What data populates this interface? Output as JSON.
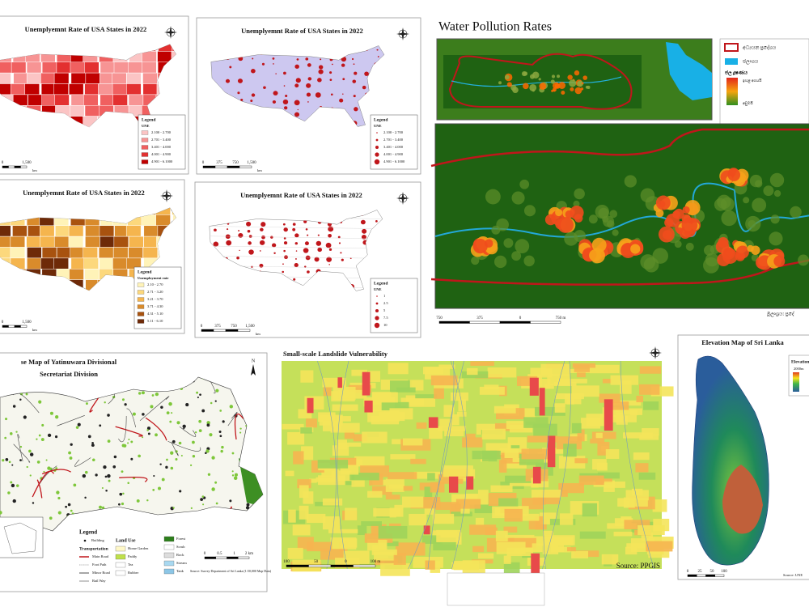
{
  "panels": [
    {
      "title": "Unemplyemnt Rate of USA States in 2022",
      "legend_title": "Legend",
      "legend_subtitle": "UNE",
      "legend_items": [
        "2.100 - 2.700",
        "2.701 - 3.400",
        "3.401 - 4.000",
        "4.001 - 4.900",
        "4.901 - 6.1000"
      ],
      "scale_labels": [
        "0",
        "1,500"
      ],
      "scale_unit": "km"
    },
    {
      "title": "Unemplyemnt Rate of USA States in 2022",
      "legend_title": "Legend",
      "legend_subtitle": "UNE",
      "legend_items": [
        "2.100 - 2.700",
        "2.701 - 3.400",
        "3.401 - 4.000",
        "4.001 - 4.900",
        "4.901 - 6.1000"
      ],
      "scale_labels": [
        "0",
        "375",
        "750",
        "1,500"
      ],
      "scale_unit": "km"
    },
    {
      "title": "Unemplyemnt Rate of USA States in 2022",
      "legend_title": "Legend",
      "legend_subtitle": "Unemployment rate",
      "legend_items": [
        "2.10 - 2.70",
        "2.71 - 3.20",
        "3.21 - 3.70",
        "3.71 - 4.30",
        "4.31 - 5.10",
        "5.11 - 6.10"
      ],
      "scale_labels": [
        "0",
        "1,500"
      ],
      "scale_unit": "km"
    },
    {
      "title": "Unemplyemnt Rate of USA States in 2022",
      "legend_title": "Legend",
      "legend_subtitle": "UNE",
      "legend_items": [
        "1",
        "2.5",
        "5",
        "7.5",
        "10"
      ],
      "scale_labels": [
        "0",
        "375",
        "750",
        "1,500"
      ],
      "scale_unit": "km"
    }
  ],
  "water": {
    "title": "Water Pollution Rates",
    "legend_items": [
      "අධ්‍යයන ප්‍රදේශය",
      "ජලාශය"
    ],
    "legend_gradient_title": "ජල දූෂණය",
    "gradient_high": "ඉහළ අගයයි",
    "gradient_low": "අඩුමයි",
    "scale_labels": [
      "750",
      "375",
      "0",
      "750 m"
    ],
    "source": "මූලාශ්‍රය: ප්‍රදේ"
  },
  "landuse": {
    "title_line1": "se Map of Yatinuwara Divisional",
    "title_line2": "Secretariat Division",
    "north": "N",
    "legend_title": "Legend",
    "building": "Building",
    "transport_title": "Transportation",
    "transport": [
      "Main Road",
      "Foot Path",
      "Minor Road",
      "Rail Way"
    ],
    "landuse_title": "Land Use",
    "landuse_items": [
      "Home Garden",
      "Paddy",
      "Tea",
      "Rubber",
      "Forest",
      "Scrub",
      "Rock",
      "Stream",
      "Tank"
    ],
    "scale_labels": [
      "0",
      "0.5",
      "1",
      "2 km"
    ],
    "source": "Source: Survey Department of Sri Lanka (1:50,000 Map Data)"
  },
  "landslide": {
    "title": "Small-scale Landslide Vulnerability",
    "scale_labels": [
      "100",
      "50",
      "0",
      "100 m"
    ],
    "source": "Source: PPGIS"
  },
  "elevation": {
    "title": "Elevation Map of Sri Lanka",
    "legend_title": "Elevation",
    "legend_high": "2000m",
    "scale_labels": [
      "0",
      "25",
      "50",
      "100"
    ],
    "source": "Source: UNE"
  }
}
